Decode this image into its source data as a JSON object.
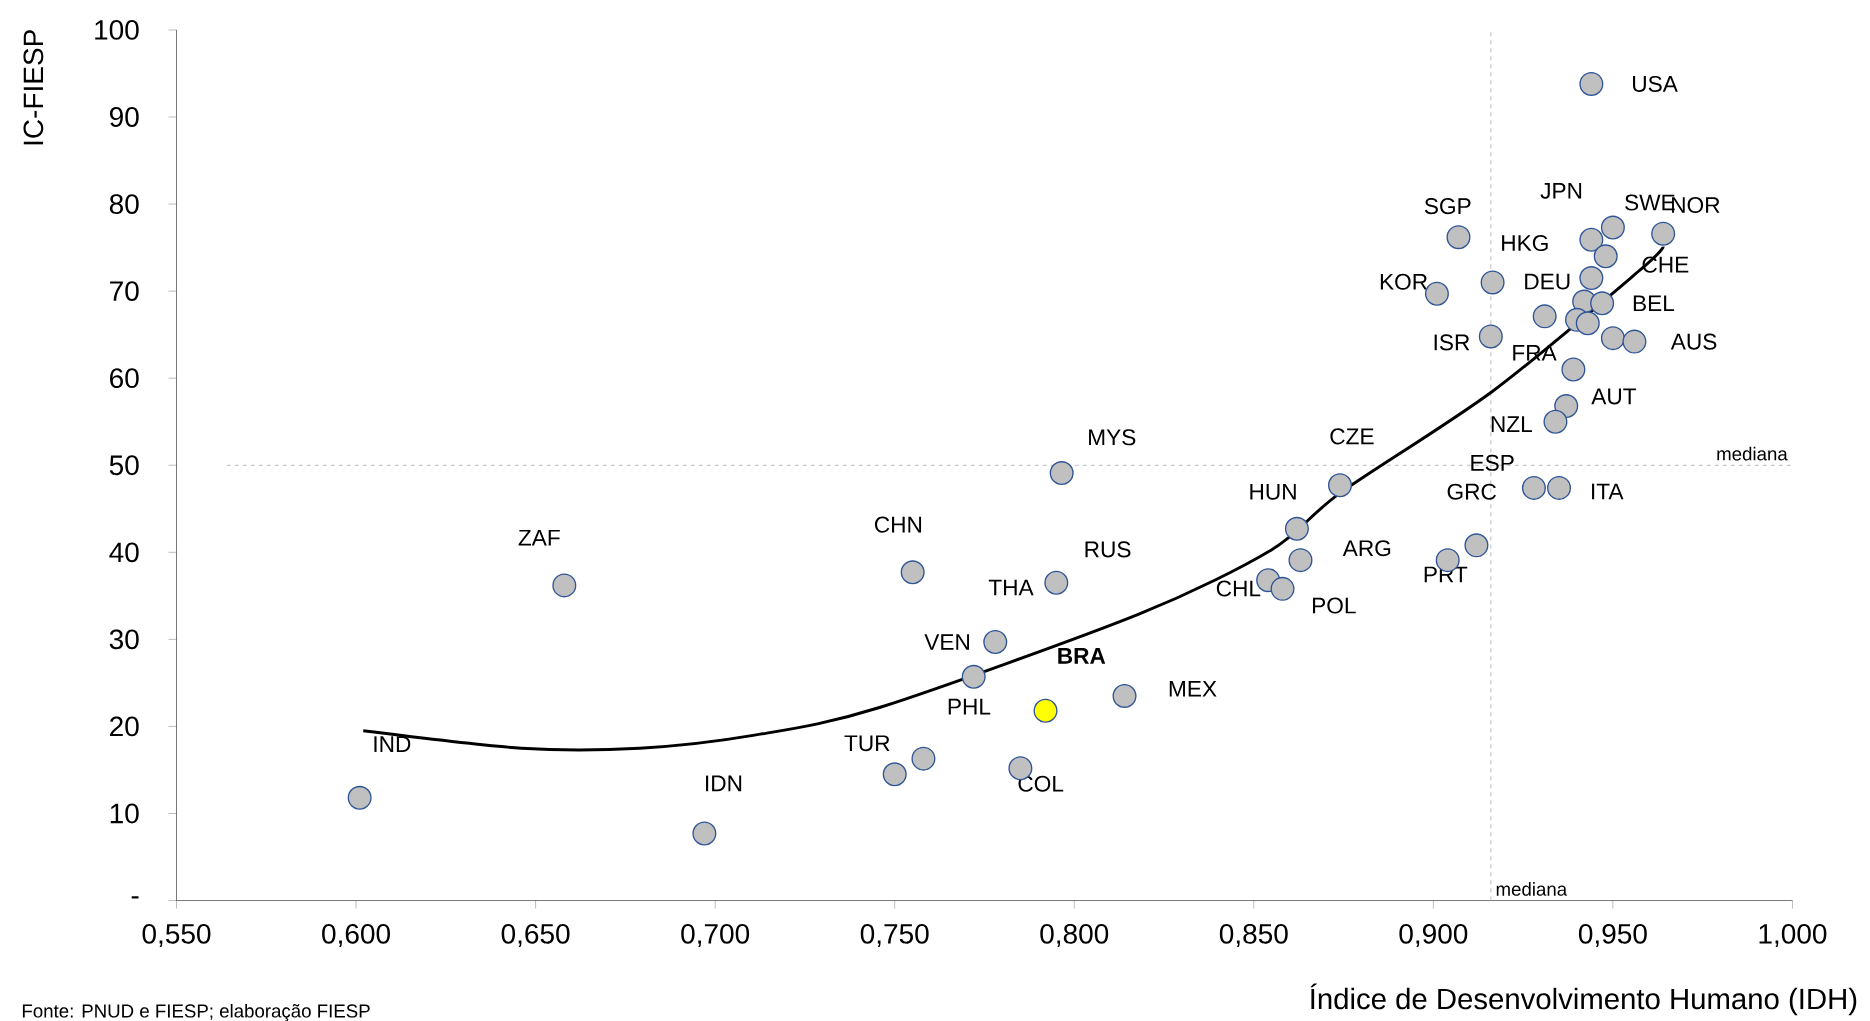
{
  "chart_data": {
    "type": "scatter",
    "xlabel": "Índice de Desenvolvimento Humano (IDH)",
    "ylabel": "IC-FIESP",
    "xlim": [
      0.55,
      1.0
    ],
    "ylim": [
      0,
      100
    ],
    "xticks": [
      {
        "value": 0.55,
        "label": "0,550"
      },
      {
        "value": 0.6,
        "label": "0,600"
      },
      {
        "value": 0.65,
        "label": "0,650"
      },
      {
        "value": 0.7,
        "label": "0,700"
      },
      {
        "value": 0.75,
        "label": "0,750"
      },
      {
        "value": 0.8,
        "label": "0,800"
      },
      {
        "value": 0.85,
        "label": "0,850"
      },
      {
        "value": 0.9,
        "label": "0,900"
      },
      {
        "value": 0.95,
        "label": "0,950"
      },
      {
        "value": 1.0,
        "label": "1,000"
      }
    ],
    "yticks": [
      {
        "value": 0,
        "label": "-"
      },
      10,
      20,
      30,
      40,
      50,
      60,
      70,
      80,
      90,
      100
    ],
    "marker": "circle",
    "grid": false,
    "series": [
      {
        "color": "#c0c0c0",
        "x": [
          0.944,
          0.907,
          0.944,
          0.95,
          0.964,
          0.948,
          0.944,
          0.9165,
          0.901,
          0.942,
          0.947,
          0.931,
          0.94,
          0.943,
          0.95,
          0.956,
          0.916,
          0.939,
          0.937,
          0.934,
          0.874,
          0.928,
          0.935,
          0.912,
          0.904,
          0.7965,
          0.862,
          0.863,
          0.854,
          0.858,
          0.755,
          0.658,
          0.795,
          0.778,
          0.772,
          0.814,
          0.785,
          0.758,
          0.75,
          0.697,
          0.601
        ],
        "values": [
          93.8,
          76.2,
          75.9,
          77.3,
          76.6,
          74.0,
          71.5,
          71.0,
          69.7,
          68.8,
          68.6,
          67.1,
          66.7,
          66.3,
          64.6,
          64.2,
          64.8,
          61.0,
          56.8,
          55.0,
          47.7,
          47.4,
          47.4,
          40.8,
          39.1,
          49.1,
          42.7,
          39.1,
          36.8,
          35.8,
          37.7,
          36.2,
          36.5,
          29.7,
          25.7,
          23.5,
          15.2,
          16.3,
          14.5,
          7.7,
          11.8
        ]
      },
      {
        "color": "#ffff00",
        "x": [
          0.792
        ],
        "values": [
          21.8
        ]
      },
      {
        "type": "line",
        "color": "#000000",
        "marker": "none",
        "line_style": "solid",
        "x": [
          0.602,
          0.646,
          0.679,
          0.711,
          0.746,
          0.818,
          0.855,
          0.874,
          0.9165,
          0.9575,
          0.964
        ],
        "values": [
          19.5,
          17.5,
          17.5,
          19.0,
          22.2,
          32.9,
          40.3,
          46.8,
          58.5,
          72.4,
          75.1
        ]
      }
    ],
    "ref_lines": [
      {
        "axis": "x",
        "value": 0.916,
        "label": "mediana",
        "color": "#bfbfbf",
        "line_style": "dashed"
      },
      {
        "axis": "y",
        "value": 50,
        "label": "mediana",
        "color": "#bfbfbf",
        "line_style": "dashed"
      }
    ],
    "annotations": [
      {
        "text": "USA",
        "x": 0.944,
        "y": 93.8
      },
      {
        "text": "JPN",
        "x": 0.944,
        "y": 75.9
      },
      {
        "text": "SWE",
        "x": 0.95,
        "y": 77.3
      },
      {
        "text": "NOR",
        "x": 0.964,
        "y": 76.6
      },
      {
        "text": "SGP",
        "x": 0.907,
        "y": 76.2
      },
      {
        "text": "HKG",
        "x": 0.9165,
        "y": 71.0
      },
      {
        "text": "KOR",
        "x": 0.901,
        "y": 69.7
      },
      {
        "text": "DEU",
        "x": 0.944,
        "y": 71.5
      },
      {
        "text": "CHE",
        "x": 0.948,
        "y": 74.0
      },
      {
        "text": "BEL",
        "x": 0.947,
        "y": 68.6
      },
      {
        "text": "ISR",
        "x": 0.916,
        "y": 64.8
      },
      {
        "text": "AUS",
        "x": 0.956,
        "y": 64.2
      },
      {
        "text": "FRA",
        "x": 0.939,
        "y": 61.0
      },
      {
        "text": "AUT",
        "x": 0.937,
        "y": 56.8
      },
      {
        "text": "NZL",
        "x": 0.934,
        "y": 55.0
      },
      {
        "text": "MYS",
        "x": 0.7965,
        "y": 49.1
      },
      {
        "text": "CZE",
        "x": 0.874,
        "y": 47.7
      },
      {
        "text": "ESP",
        "x": 0.928,
        "y": 47.4
      },
      {
        "text": "GRC",
        "x": 0.912,
        "y": 40.8
      },
      {
        "text": "ITA",
        "x": 0.935,
        "y": 47.4
      },
      {
        "text": "HUN",
        "x": 0.862,
        "y": 42.7
      },
      {
        "text": "ARG",
        "x": 0.863,
        "y": 39.1
      },
      {
        "text": "CHL",
        "x": 0.854,
        "y": 36.8
      },
      {
        "text": "POL",
        "x": 0.858,
        "y": 35.8
      },
      {
        "text": "PRT",
        "x": 0.904,
        "y": 39.1
      },
      {
        "text": "CHN",
        "x": 0.755,
        "y": 37.7
      },
      {
        "text": "ZAF",
        "x": 0.658,
        "y": 36.2
      },
      {
        "text": "RUS",
        "x": 0.795,
        "y": 36.5
      },
      {
        "text": "THA",
        "x": 0.795,
        "y": 36.5
      },
      {
        "text": "VEN",
        "x": 0.778,
        "y": 29.7
      },
      {
        "text": "BRA",
        "x": 0.792,
        "y": 21.8
      },
      {
        "text": "MEX",
        "x": 0.814,
        "y": 23.5
      },
      {
        "text": "PHL",
        "x": 0.772,
        "y": 25.7
      },
      {
        "text": "TUR",
        "x": 0.75,
        "y": 14.5
      },
      {
        "text": "COL",
        "x": 0.785,
        "y": 15.2
      },
      {
        "text": "IDN",
        "x": 0.697,
        "y": 7.7
      },
      {
        "text": "IND",
        "x": 0.601,
        "y": 11.8
      },
      "Fonte: PNUD e FIESP; elaboração FIESP"
    ]
  }
}
